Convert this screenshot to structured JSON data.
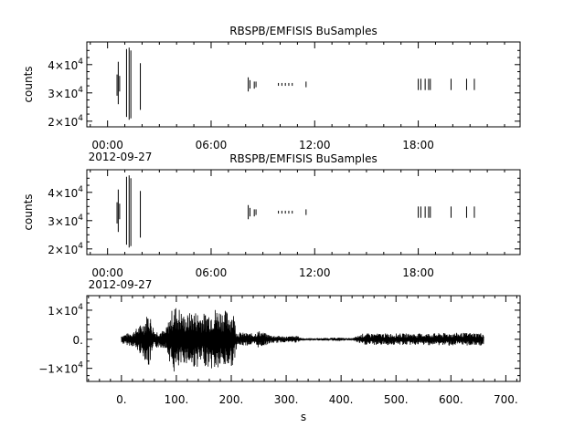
{
  "chart_data": [
    {
      "type": "line",
      "title": "RBSPB/EMFISIS  BuSamples",
      "ylabel": "counts",
      "xlabel": "",
      "x_axis": "time",
      "x_ticks": [
        "00:00",
        "06:00",
        "12:00",
        "18:00"
      ],
      "x_tick_hours": [
        0,
        6,
        12,
        18
      ],
      "x_date_label": "2012-09-27",
      "xlim_hours": [
        -1.2,
        23.9
      ],
      "ylim": [
        18000,
        48000
      ],
      "y_ticks": [
        {
          "value": 20000,
          "mantissa": "2",
          "base": "10",
          "exp": "4"
        },
        {
          "value": 30000,
          "mantissa": "3",
          "base": "10",
          "exp": "4"
        },
        {
          "value": 40000,
          "mantissa": "4",
          "base": "10",
          "exp": "4"
        }
      ],
      "bursts": [
        {
          "t": 0.55,
          "lo": 29000,
          "hi": 36500
        },
        {
          "t": 0.62,
          "lo": 26000,
          "hi": 41000
        },
        {
          "t": 0.7,
          "lo": 30500,
          "hi": 36000
        },
        {
          "t": 1.1,
          "lo": 21500,
          "hi": 45500
        },
        {
          "t": 1.25,
          "lo": 20500,
          "hi": 46000
        },
        {
          "t": 1.35,
          "lo": 21000,
          "hi": 45000
        },
        {
          "t": 1.9,
          "lo": 24000,
          "hi": 40500
        },
        {
          "t": 8.15,
          "lo": 30500,
          "hi": 35500
        },
        {
          "t": 8.25,
          "lo": 31500,
          "hi": 34500
        },
        {
          "t": 8.5,
          "lo": 31500,
          "hi": 34000
        },
        {
          "t": 8.6,
          "lo": 32000,
          "hi": 34000
        },
        {
          "t": 9.9,
          "lo": 32500,
          "hi": 33500
        },
        {
          "t": 10.1,
          "lo": 32500,
          "hi": 33500
        },
        {
          "t": 10.3,
          "lo": 32500,
          "hi": 33500
        },
        {
          "t": 10.5,
          "lo": 32500,
          "hi": 33500
        },
        {
          "t": 10.7,
          "lo": 32500,
          "hi": 33500
        },
        {
          "t": 11.5,
          "lo": 32000,
          "hi": 34000
        },
        {
          "t": 18.0,
          "lo": 31000,
          "hi": 35000
        },
        {
          "t": 18.15,
          "lo": 31000,
          "hi": 35000
        },
        {
          "t": 18.4,
          "lo": 31000,
          "hi": 35000
        },
        {
          "t": 18.6,
          "lo": 31000,
          "hi": 35000
        },
        {
          "t": 18.7,
          "lo": 31000,
          "hi": 35000
        },
        {
          "t": 19.9,
          "lo": 31000,
          "hi": 35000
        },
        {
          "t": 20.8,
          "lo": 31000,
          "hi": 35000
        },
        {
          "t": 21.25,
          "lo": 31000,
          "hi": 35000
        }
      ]
    },
    {
      "type": "line",
      "title": "RBSPB/EMFISIS  BuSamples",
      "ylabel": "counts",
      "xlabel": "",
      "x_axis": "time",
      "x_ticks": [
        "00:00",
        "06:00",
        "12:00",
        "18:00"
      ],
      "x_tick_hours": [
        0,
        6,
        12,
        18
      ],
      "x_date_label": "2012-09-27",
      "xlim_hours": [
        -1.2,
        23.9
      ],
      "ylim": [
        18000,
        48000
      ],
      "y_ticks": [
        {
          "value": 20000,
          "mantissa": "2",
          "base": "10",
          "exp": "4"
        },
        {
          "value": 30000,
          "mantissa": "3",
          "base": "10",
          "exp": "4"
        },
        {
          "value": 40000,
          "mantissa": "4",
          "base": "10",
          "exp": "4"
        }
      ],
      "bursts": [
        {
          "t": 0.55,
          "lo": 29000,
          "hi": 36500
        },
        {
          "t": 0.62,
          "lo": 26000,
          "hi": 41000
        },
        {
          "t": 0.7,
          "lo": 30500,
          "hi": 36000
        },
        {
          "t": 1.1,
          "lo": 21500,
          "hi": 45500
        },
        {
          "t": 1.25,
          "lo": 20500,
          "hi": 46000
        },
        {
          "t": 1.35,
          "lo": 21000,
          "hi": 45000
        },
        {
          "t": 1.9,
          "lo": 24000,
          "hi": 40500
        },
        {
          "t": 8.15,
          "lo": 30500,
          "hi": 35500
        },
        {
          "t": 8.25,
          "lo": 31500,
          "hi": 34500
        },
        {
          "t": 8.5,
          "lo": 31500,
          "hi": 34000
        },
        {
          "t": 8.6,
          "lo": 32000,
          "hi": 34000
        },
        {
          "t": 9.9,
          "lo": 32500,
          "hi": 33500
        },
        {
          "t": 10.1,
          "lo": 32500,
          "hi": 33500
        },
        {
          "t": 10.3,
          "lo": 32500,
          "hi": 33500
        },
        {
          "t": 10.5,
          "lo": 32500,
          "hi": 33500
        },
        {
          "t": 10.7,
          "lo": 32500,
          "hi": 33500
        },
        {
          "t": 11.5,
          "lo": 32000,
          "hi": 34000
        },
        {
          "t": 18.0,
          "lo": 31000,
          "hi": 35000
        },
        {
          "t": 18.15,
          "lo": 31000,
          "hi": 35000
        },
        {
          "t": 18.4,
          "lo": 31000,
          "hi": 35000
        },
        {
          "t": 18.6,
          "lo": 31000,
          "hi": 35000
        },
        {
          "t": 18.7,
          "lo": 31000,
          "hi": 35000
        },
        {
          "t": 19.9,
          "lo": 31000,
          "hi": 35000
        },
        {
          "t": 20.8,
          "lo": 31000,
          "hi": 35000
        },
        {
          "t": 21.25,
          "lo": 31000,
          "hi": 35000
        }
      ]
    },
    {
      "type": "line",
      "title": "",
      "ylabel": "",
      "xlabel": "s",
      "xlim": [
        -63,
        726
      ],
      "x_ticks": [
        "0.",
        "100.",
        "200.",
        "300.",
        "400.",
        "500.",
        "600.",
        "700."
      ],
      "x_tick_values": [
        0,
        100,
        200,
        300,
        400,
        500,
        600,
        700
      ],
      "x_minor_step": 20,
      "ylim": [
        -14500,
        15000
      ],
      "y_ticks": [
        {
          "value": 10000,
          "text": "1×10",
          "exp": "4"
        },
        {
          "value": 0,
          "text": "0.",
          "exp": ""
        },
        {
          "value": -10000,
          "text": "−1×10",
          "exp": "4"
        }
      ],
      "envelope": [
        {
          "s": 0,
          "amp": 1500
        },
        {
          "s": 20,
          "amp": 2500
        },
        {
          "s": 40,
          "amp": 6000
        },
        {
          "s": 50,
          "amp": 10000
        },
        {
          "s": 60,
          "amp": 3000
        },
        {
          "s": 80,
          "amp": 3000
        },
        {
          "s": 95,
          "amp": 12000
        },
        {
          "s": 105,
          "amp": 11000
        },
        {
          "s": 115,
          "amp": 8000
        },
        {
          "s": 130,
          "amp": 10000
        },
        {
          "s": 150,
          "amp": 9000
        },
        {
          "s": 170,
          "amp": 11000
        },
        {
          "s": 190,
          "amp": 10000
        },
        {
          "s": 205,
          "amp": 9000
        },
        {
          "s": 210,
          "amp": 2500
        },
        {
          "s": 240,
          "amp": 2000
        },
        {
          "s": 250,
          "amp": 3000
        },
        {
          "s": 270,
          "amp": 1500
        },
        {
          "s": 300,
          "amp": 1000
        },
        {
          "s": 320,
          "amp": 1200
        },
        {
          "s": 330,
          "amp": 300
        },
        {
          "s": 360,
          "amp": 400
        },
        {
          "s": 400,
          "amp": 600
        },
        {
          "s": 420,
          "amp": 300
        },
        {
          "s": 440,
          "amp": 2000
        },
        {
          "s": 500,
          "amp": 2000
        },
        {
          "s": 550,
          "amp": 2000
        },
        {
          "s": 600,
          "amp": 2200
        },
        {
          "s": 660,
          "amp": 2200
        }
      ]
    }
  ]
}
